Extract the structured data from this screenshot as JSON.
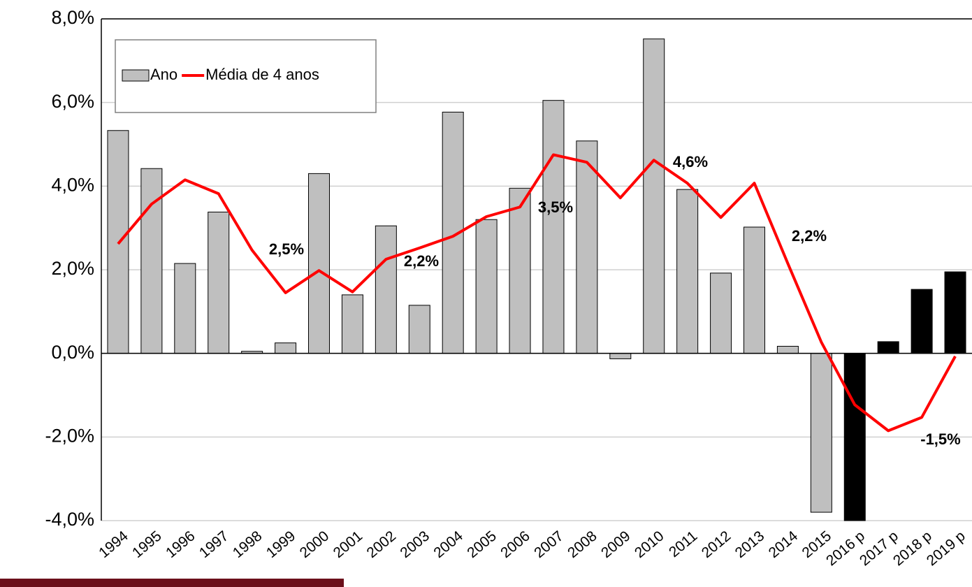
{
  "chart_data": {
    "type": "bar_line",
    "categories": [
      "1994",
      "1995",
      "1996",
      "1997",
      "1998",
      "1999",
      "2000",
      "2001",
      "2002",
      "2003",
      "2004",
      "2005",
      "2006",
      "2007",
      "2008",
      "2009",
      "2010",
      "2011",
      "2012",
      "2013",
      "2014",
      "2015",
      "2016 p",
      "2017 p",
      "2018 p",
      "2019 p"
    ],
    "series": [
      {
        "name": "Ano",
        "type": "bar",
        "color": "#bfbfbf",
        "colors": [
          "#bfbfbf",
          "#bfbfbf",
          "#bfbfbf",
          "#bfbfbf",
          "#bfbfbf",
          "#bfbfbf",
          "#bfbfbf",
          "#bfbfbf",
          "#bfbfbf",
          "#bfbfbf",
          "#bfbfbf",
          "#bfbfbf",
          "#bfbfbf",
          "#bfbfbf",
          "#bfbfbf",
          "#bfbfbf",
          "#bfbfbf",
          "#bfbfbf",
          "#bfbfbf",
          "#bfbfbf",
          "#bfbfbf",
          "#bfbfbf",
          "#000000",
          "#000000",
          "#000000",
          "#000000"
        ],
        "values": [
          5.33,
          4.42,
          2.15,
          3.38,
          0.05,
          0.25,
          4.3,
          1.4,
          3.05,
          1.15,
          5.77,
          3.2,
          3.95,
          6.05,
          5.08,
          -0.13,
          7.52,
          3.92,
          1.92,
          3.02,
          0.17,
          -3.8,
          -4.0,
          0.28,
          1.53,
          1.95
        ]
      },
      {
        "name": "Média de 4 anos",
        "type": "line",
        "color": "#ff0000",
        "values": [
          2.62,
          3.57,
          4.15,
          3.82,
          2.47,
          1.45,
          1.98,
          1.47,
          2.25,
          2.52,
          2.8,
          3.27,
          3.5,
          4.75,
          4.57,
          3.72,
          4.62,
          4.07,
          3.25,
          4.07,
          2.15,
          0.27,
          -1.23,
          -1.85,
          -1.53,
          -0.07
        ]
      }
    ],
    "annotations": [
      "2,5%",
      "2,2%",
      "3,5%",
      "4,6%",
      "2,2%",
      "-1,5%"
    ],
    "ylim": [
      -4,
      8
    ],
    "yticks": [
      {
        "value": -4,
        "label": "-4,0%"
      },
      {
        "value": -2,
        "label": "-2,0%"
      },
      {
        "value": 0,
        "label": "0,0%"
      },
      {
        "value": 2,
        "label": "2,0%"
      },
      {
        "value": 4,
        "label": "4,0%"
      },
      {
        "value": 6,
        "label": "6,0%"
      },
      {
        "value": 8,
        "label": "8,0%"
      }
    ],
    "grid": true,
    "legend": "upper left"
  }
}
